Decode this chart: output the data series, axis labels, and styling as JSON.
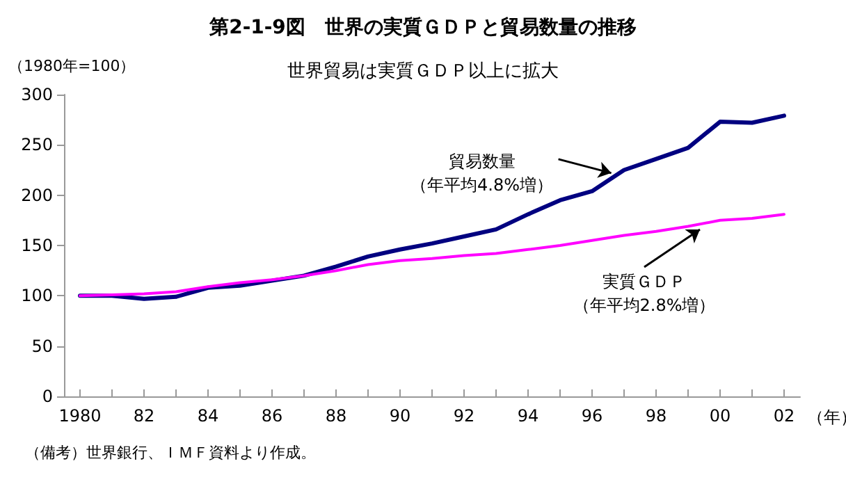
{
  "chart_data": {
    "type": "line",
    "title": "第2-1-9図　世界の実質ＧＤＰと貿易数量の推移",
    "subtitle": "世界貿易は実質ＧＤＰ以上に拡大",
    "ylabel": "（1980年=100）",
    "xlabel": "（年）",
    "x": [
      1980,
      1981,
      1982,
      1983,
      1984,
      1985,
      1986,
      1987,
      1988,
      1989,
      1990,
      1991,
      1992,
      1993,
      1994,
      1995,
      1996,
      1997,
      1998,
      1999,
      2000,
      2001,
      2002
    ],
    "series": [
      {
        "name": "貿易数量",
        "color": "#000080",
        "values": [
          100,
          100,
          97,
          99,
          108,
          110,
          115,
          120,
          129,
          139,
          146,
          152,
          159,
          166,
          181,
          195,
          204,
          225,
          236,
          247,
          273,
          272,
          279
        ]
      },
      {
        "name": "実質ＧＤＰ",
        "color": "#ff00ff",
        "values": [
          100,
          101,
          102,
          104,
          109,
          113,
          116,
          120,
          125,
          131,
          135,
          137,
          140,
          142,
          146,
          150,
          155,
          160,
          164,
          169,
          175,
          177,
          181
        ]
      }
    ],
    "annotations": [
      {
        "text": "（年平均4.8%増）",
        "x": 1996.6,
        "y": 222
      },
      "（年平均2.8%増）",
      "（備考）世界銀行、ＩＭＦ資料より作成。"
    ],
    "xlim": [
      1979.5,
      2002.5
    ],
    "xticks": [
      {
        "value": 1980,
        "label": "1980"
      },
      {
        "value": 1981,
        "label": null
      },
      {
        "value": 1982,
        "label": "82"
      },
      {
        "value": 1983,
        "label": null
      },
      {
        "value": 1984,
        "label": "84"
      },
      {
        "value": 1985,
        "label": null
      },
      {
        "value": 1986,
        "label": "86"
      },
      {
        "value": 1987,
        "label": null
      },
      {
        "value": 1988,
        "label": "88"
      },
      {
        "value": 1989,
        "label": null
      },
      {
        "value": 1990,
        "label": "90"
      },
      {
        "value": 1991,
        "label": null
      },
      {
        "value": 1992,
        "label": "92"
      },
      {
        "value": 1993,
        "label": null
      },
      {
        "value": 1994,
        "label": "94"
      },
      {
        "value": 1995,
        "label": null
      },
      {
        "value": 1996,
        "label": "96"
      },
      {
        "value": 1997,
        "label": null
      },
      {
        "value": 1998,
        "label": "98"
      },
      {
        "value": 1999,
        "label": null
      },
      {
        "value": 2000,
        "label": "00"
      },
      {
        "value": 2001,
        "label": null
      },
      {
        "value": 2002,
        "label": "02"
      }
    ],
    "ylim": [
      0,
      300
    ],
    "yticks": [
      0,
      50,
      100,
      150,
      200,
      250,
      300
    ],
    "grid": false,
    "legend": false,
    "marker": "none",
    "line_style": "solid"
  }
}
